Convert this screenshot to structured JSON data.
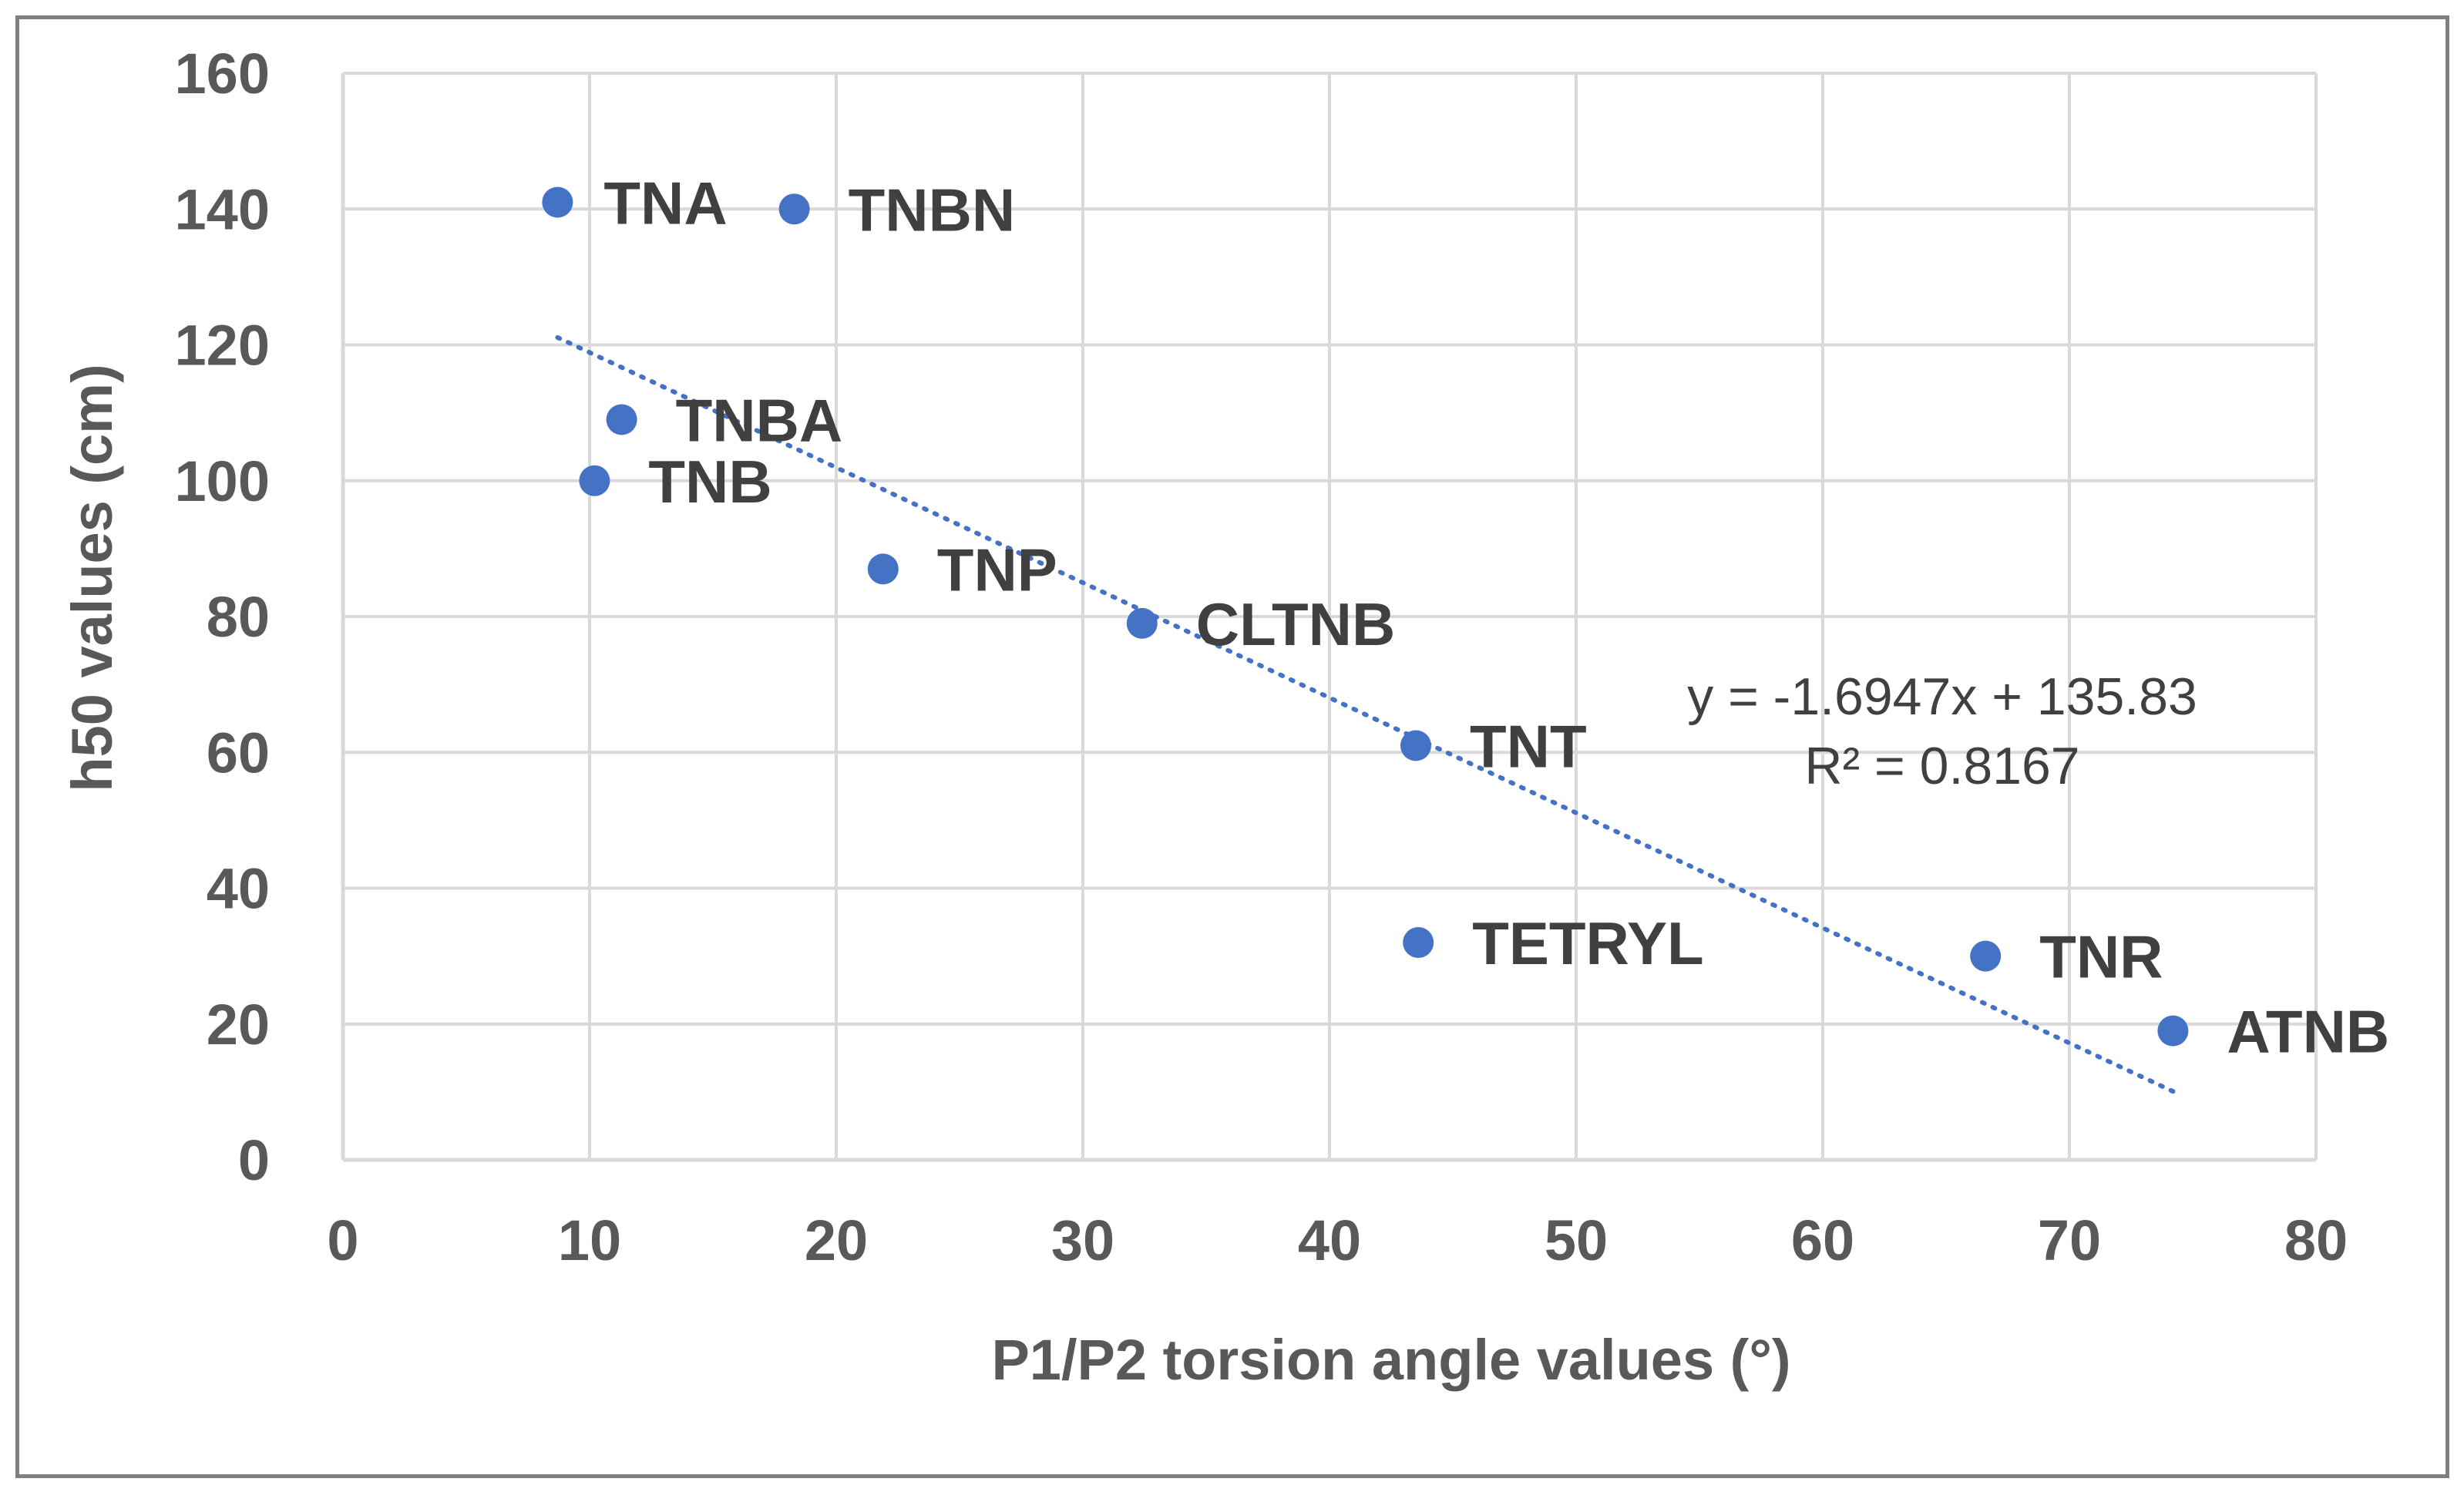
{
  "chart_data": {
    "type": "scatter",
    "title": "",
    "xlabel": "P1/P2 torsion angle values (°)",
    "ylabel": "h50 values (cm)",
    "xlim": [
      0,
      80
    ],
    "ylim": [
      0,
      160
    ],
    "x_ticks": [
      0,
      10,
      20,
      30,
      40,
      50,
      60,
      70,
      80
    ],
    "y_ticks": [
      0,
      20,
      40,
      60,
      80,
      100,
      120,
      140,
      160
    ],
    "grid": true,
    "marker_color": "#4472C4",
    "points": [
      {
        "label": "TNA",
        "x": 8.7,
        "y": 141
      },
      {
        "label": "TNBN",
        "x": 18.3,
        "y": 140
      },
      {
        "label": "TNBA",
        "x": 11.3,
        "y": 109
      },
      {
        "label": "TNB",
        "x": 10.2,
        "y": 100
      },
      {
        "label": "TNP",
        "x": 21.9,
        "y": 87
      },
      {
        "label": "CLTNB",
        "x": 32.4,
        "y": 79
      },
      {
        "label": "TNT",
        "x": 43.5,
        "y": 61
      },
      {
        "label": "TETRYL",
        "x": 43.6,
        "y": 32
      },
      {
        "label": "TNR",
        "x": 66.6,
        "y": 30
      },
      {
        "label": "ATNB",
        "x": 74.2,
        "y": 19
      }
    ],
    "trendline": {
      "type": "linear",
      "slope": -1.6947,
      "intercept": 135.83,
      "x_range": [
        8.7,
        74.2
      ],
      "equation": "y = -1.6947x + 135.83",
      "r_squared": "R² = 0.8167",
      "color": "#4472C4",
      "style": "dotted"
    }
  }
}
